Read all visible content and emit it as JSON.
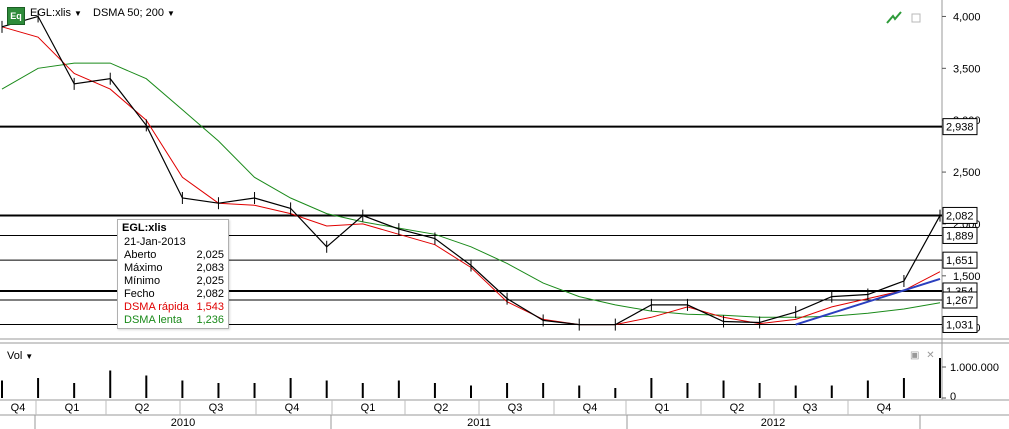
{
  "header": {
    "logo": "Eq",
    "symbol": "EGL:xlis",
    "indicator": "DSMA 50; 200"
  },
  "legend": {
    "title": "EGL:xlis",
    "date": "21-Jan-2013",
    "rows": [
      {
        "label": "Aberto",
        "value": "2,025",
        "color": "#000000"
      },
      {
        "label": "Máximo",
        "value": "2,083",
        "color": "#000000"
      },
      {
        "label": "Mínimo",
        "value": "2,025",
        "color": "#000000"
      },
      {
        "label": "Fecho",
        "value": "2,082",
        "color": "#000000"
      },
      {
        "label": "DSMA rápida",
        "value": "1,543",
        "color": "#e00000"
      },
      {
        "label": "DSMA lenta",
        "value": "1,236",
        "color": "#1a8a1a"
      }
    ]
  },
  "volume_panel": {
    "label": "Vol",
    "ticks": [
      "1.000.000",
      "0"
    ]
  },
  "chart_data": {
    "type": "line",
    "price_axis": {
      "ticks": [
        "4,000",
        "3,500",
        "3,000",
        "2,500",
        "2,000",
        "1,500",
        "1,000"
      ],
      "tick_values": [
        4.0,
        3.5,
        3.0,
        2.5,
        2.0,
        1.5,
        1.0
      ],
      "ylim": [
        0.92,
        4.12
      ]
    },
    "horizontal_levels": [
      {
        "label": "2,938",
        "value": 2.938,
        "bold": true
      },
      {
        "label": "2,082",
        "value": 2.082,
        "bold": true
      },
      {
        "label": "1,889",
        "value": 1.889,
        "bold": false
      },
      {
        "label": "1,651",
        "value": 1.651,
        "bold": false
      },
      {
        "label": "1,354",
        "value": 1.354,
        "bold": true
      },
      {
        "label": "1,267",
        "value": 1.267,
        "bold": false
      },
      {
        "label": "1,031",
        "value": 1.031,
        "bold": false
      }
    ],
    "quarters": [
      "Q4",
      "Q1",
      "Q2",
      "Q3",
      "Q4",
      "Q1",
      "Q2",
      "Q3",
      "Q4",
      "Q1",
      "Q2",
      "Q3",
      "Q4"
    ],
    "years": [
      "2010",
      "2011",
      "2012"
    ],
    "x": [
      "2009-10",
      "2009-12",
      "2010-02",
      "2010-03",
      "2010-05",
      "2010-06",
      "2010-08",
      "2010-09",
      "2010-11",
      "2010-12",
      "2011-02",
      "2011-03",
      "2011-05",
      "2011-06",
      "2011-08",
      "2011-09",
      "2011-11",
      "2011-12",
      "2012-02",
      "2012-03",
      "2012-05",
      "2012-06",
      "2012-08",
      "2012-09",
      "2012-11",
      "2012-12",
      "2013-01"
    ],
    "series": [
      {
        "name": "EGL:xlis",
        "color": "#000000",
        "values": [
          3.9,
          4.0,
          3.35,
          3.4,
          2.95,
          2.25,
          2.2,
          2.25,
          2.15,
          1.78,
          2.08,
          1.95,
          1.86,
          1.6,
          1.28,
          1.07,
          1.03,
          1.03,
          1.22,
          1.22,
          1.06,
          1.05,
          1.15,
          1.3,
          1.32,
          1.45,
          2.08
        ]
      },
      {
        "name": "DSMA rápida",
        "color": "#e00000",
        "values": [
          3.9,
          3.8,
          3.45,
          3.3,
          3.0,
          2.45,
          2.2,
          2.18,
          2.1,
          1.98,
          2.0,
          1.9,
          1.8,
          1.58,
          1.25,
          1.08,
          1.03,
          1.03,
          1.1,
          1.2,
          1.1,
          1.04,
          1.08,
          1.2,
          1.28,
          1.36,
          1.54
        ]
      },
      {
        "name": "DSMA lenta",
        "color": "#1a8a1a",
        "values": [
          3.3,
          3.5,
          3.55,
          3.55,
          3.4,
          3.1,
          2.8,
          2.45,
          2.25,
          2.1,
          2.02,
          1.96,
          1.9,
          1.78,
          1.62,
          1.43,
          1.3,
          1.22,
          1.16,
          1.13,
          1.12,
          1.1,
          1.1,
          1.11,
          1.14,
          1.18,
          1.24
        ]
      }
    ],
    "trendline": {
      "color": "#2b3fbf",
      "from": [
        "2012-08",
        1.03
      ],
      "to": [
        "2013-01",
        1.47
      ]
    },
    "volume_values": [
      0.35,
      0.4,
      0.3,
      0.55,
      0.45,
      0.35,
      0.3,
      0.3,
      0.4,
      0.35,
      0.3,
      0.35,
      0.3,
      0.25,
      0.3,
      0.3,
      0.25,
      0.2,
      0.4,
      0.3,
      0.35,
      0.3,
      0.25,
      0.25,
      0.35,
      0.4,
      0.8
    ]
  }
}
